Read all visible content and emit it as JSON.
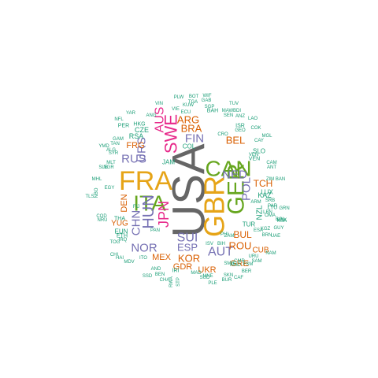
{
  "colors": {
    "gray": "#666666",
    "orange": "#E6A417",
    "green": "#66A61E",
    "pink": "#E7298A",
    "purple": "#7570B3",
    "rust": "#D95F02",
    "teal": "#1B9E77"
  },
  "words": [
    {
      "text": "USA",
      "color": "gray"
    },
    {
      "text": "FRA",
      "color": "orange"
    },
    {
      "text": "GBR",
      "color": "orange"
    },
    {
      "text": "GER",
      "color": "green"
    },
    {
      "text": "CAN",
      "color": "green"
    },
    {
      "text": "ITA",
      "color": "green"
    },
    {
      "text": "SWE",
      "color": "pink"
    },
    {
      "text": "AUS",
      "color": "pink"
    },
    {
      "text": "JPN",
      "color": "pink"
    },
    {
      "text": "HUN",
      "color": "purple"
    },
    {
      "text": "URS",
      "color": "purple"
    },
    {
      "text": "CHN",
      "color": "purple"
    },
    {
      "text": "RUS",
      "color": "purple"
    },
    {
      "text": "NOR",
      "color": "purple"
    },
    {
      "text": "SUI",
      "color": "purple"
    },
    {
      "text": "NED",
      "color": "purple"
    },
    {
      "text": "POL",
      "color": "purple"
    },
    {
      "text": "FIN",
      "color": "purple"
    },
    {
      "text": "ESP",
      "color": "purple"
    },
    {
      "text": "AUT",
      "color": "purple"
    },
    {
      "text": "KOR",
      "color": "rust"
    },
    {
      "text": "BRA",
      "color": "rust"
    },
    {
      "text": "ARG",
      "color": "rust"
    },
    {
      "text": "BEL",
      "color": "rust"
    },
    {
      "text": "DEN",
      "color": "rust"
    },
    {
      "text": "ROU",
      "color": "rust"
    },
    {
      "text": "TCH",
      "color": "rust"
    },
    {
      "text": "BUL",
      "color": "rust"
    },
    {
      "text": "FRG",
      "color": "rust"
    },
    {
      "text": "MEX",
      "color": "rust"
    },
    {
      "text": "GDR",
      "color": "rust"
    },
    {
      "text": "UKR",
      "color": "rust"
    },
    {
      "text": "GRE",
      "color": "rust"
    },
    {
      "text": "YUG",
      "color": "rust"
    },
    {
      "text": "CUB",
      "color": "rust"
    },
    {
      "text": "CZE",
      "color": "teal"
    },
    {
      "text": "RSA",
      "color": "teal"
    },
    {
      "text": "NZL",
      "color": "teal"
    },
    {
      "text": "KAZ",
      "color": "teal"
    },
    {
      "text": "TUR",
      "color": "teal"
    },
    {
      "text": "LUX",
      "color": "teal"
    },
    {
      "text": "COL",
      "color": "teal"
    },
    {
      "text": "JAM",
      "color": "teal"
    },
    {
      "text": "SLO",
      "color": "teal"
    },
    {
      "text": "EUN",
      "color": "teal"
    },
    {
      "text": "BAH",
      "color": "teal"
    },
    {
      "text": "HKG",
      "color": "teal"
    },
    {
      "text": "PER",
      "color": "teal"
    },
    {
      "text": "THA",
      "color": "teal"
    },
    {
      "text": "ETH",
      "color": "teal"
    },
    {
      "text": "IRI",
      "color": "teal"
    },
    {
      "text": "PAN",
      "color": "teal"
    },
    {
      "text": "ISR",
      "color": "teal"
    },
    {
      "text": "VEN",
      "color": "teal"
    },
    {
      "text": "LTU",
      "color": "teal"
    },
    {
      "text": "SRB",
      "color": "teal"
    },
    {
      "text": "CRO",
      "color": "teal"
    },
    {
      "text": "ZIM",
      "color": "teal"
    },
    {
      "text": "BAN",
      "color": "teal"
    },
    {
      "text": "ANT",
      "color": "teal"
    },
    {
      "text": "CAM",
      "color": "teal"
    },
    {
      "text": "KGZ",
      "color": "teal"
    },
    {
      "text": "PHI",
      "color": "teal"
    },
    {
      "text": "UAE",
      "color": "teal"
    },
    {
      "text": "ZAM",
      "color": "teal"
    },
    {
      "text": "URU",
      "color": "teal"
    },
    {
      "text": "NAM",
      "color": "teal"
    },
    {
      "text": "IRQ",
      "color": "teal"
    },
    {
      "text": "LBN",
      "color": "teal"
    },
    {
      "text": "PLE",
      "color": "teal"
    },
    {
      "text": "FIJ",
      "color": "teal"
    },
    {
      "text": "BOL",
      "color": "teal"
    },
    {
      "text": "UNK",
      "color": "teal"
    },
    {
      "text": "GUY",
      "color": "teal"
    },
    {
      "text": "BER",
      "color": "teal"
    },
    {
      "text": "TOG",
      "color": "teal"
    },
    {
      "text": "SSD",
      "color": "teal"
    },
    {
      "text": "MDV",
      "color": "teal"
    },
    {
      "text": "CHA",
      "color": "teal"
    },
    {
      "text": "BEN",
      "color": "teal"
    },
    {
      "text": "SKN",
      "color": "teal"
    },
    {
      "text": "BUR",
      "color": "teal"
    },
    {
      "text": "CMR",
      "color": "teal"
    },
    {
      "text": "FSM",
      "color": "teal"
    },
    {
      "text": "AMO",
      "color": "teal"
    },
    {
      "text": "SAM",
      "color": "teal"
    },
    {
      "text": "VIE",
      "color": "teal"
    },
    {
      "text": "SEN",
      "color": "teal"
    },
    {
      "text": "ANZ",
      "color": "teal"
    },
    {
      "text": "GEO",
      "color": "teal"
    },
    {
      "text": "BOT",
      "color": "teal"
    },
    {
      "text": "WIF",
      "color": "teal"
    },
    {
      "text": "PLW",
      "color": "teal"
    },
    {
      "text": "GAB",
      "color": "teal"
    },
    {
      "text": "TUV",
      "color": "teal"
    },
    {
      "text": "KUW",
      "color": "teal"
    },
    {
      "text": "VIN",
      "color": "teal"
    },
    {
      "text": "YAR",
      "color": "teal"
    },
    {
      "text": "NFL",
      "color": "teal"
    },
    {
      "text": "ANG",
      "color": "teal"
    },
    {
      "text": "ECU",
      "color": "teal"
    },
    {
      "text": "SGP",
      "color": "teal"
    },
    {
      "text": "BDI",
      "color": "teal"
    },
    {
      "text": "MAW",
      "color": "teal"
    },
    {
      "text": "TGA",
      "color": "teal"
    },
    {
      "text": "LAO",
      "color": "teal"
    },
    {
      "text": "COK",
      "color": "teal"
    },
    {
      "text": "CAY",
      "color": "teal"
    },
    {
      "text": "MGL",
      "color": "teal"
    },
    {
      "text": "ALG",
      "color": "teal"
    },
    {
      "text": "SYR",
      "color": "teal"
    },
    {
      "text": "MLT",
      "color": "teal"
    },
    {
      "text": "NGR",
      "color": "teal"
    },
    {
      "text": "MHL",
      "color": "teal"
    },
    {
      "text": "YMD",
      "color": "teal"
    },
    {
      "text": "GAM",
      "color": "teal"
    },
    {
      "text": "SLE",
      "color": "teal"
    },
    {
      "text": "NBO",
      "color": "teal"
    },
    {
      "text": "TLS",
      "color": "teal"
    },
    {
      "text": "COD",
      "color": "teal"
    },
    {
      "text": "NRU",
      "color": "teal"
    },
    {
      "text": "MAD",
      "color": "teal"
    },
    {
      "text": "MNE",
      "color": "teal"
    },
    {
      "text": "ISV",
      "color": "teal"
    },
    {
      "text": "BIH",
      "color": "teal"
    },
    {
      "text": "PAR",
      "color": "teal"
    },
    {
      "text": "OMA",
      "color": "teal"
    },
    {
      "text": "SUD",
      "color": "teal"
    },
    {
      "text": "STP",
      "color": "teal"
    },
    {
      "text": "RWA",
      "color": "teal"
    },
    {
      "text": "CAF",
      "color": "teal"
    },
    {
      "text": "SMR",
      "color": "teal"
    },
    {
      "text": "GRN",
      "color": "teal"
    },
    {
      "text": "ITO",
      "color": "teal"
    },
    {
      "text": "CHI",
      "color": "teal"
    },
    {
      "text": "HAI",
      "color": "teal"
    },
    {
      "text": "AND",
      "color": "teal"
    },
    {
      "text": "ESA",
      "color": "teal"
    },
    {
      "text": "ARM",
      "color": "teal"
    },
    {
      "text": "KSA",
      "color": "teal"
    },
    {
      "text": "EGY",
      "color": "teal"
    },
    {
      "text": "TAN",
      "color": "teal"
    },
    {
      "text": "BRN",
      "color": "teal"
    },
    {
      "text": "VEN",
      "color": "teal"
    }
  ]
}
